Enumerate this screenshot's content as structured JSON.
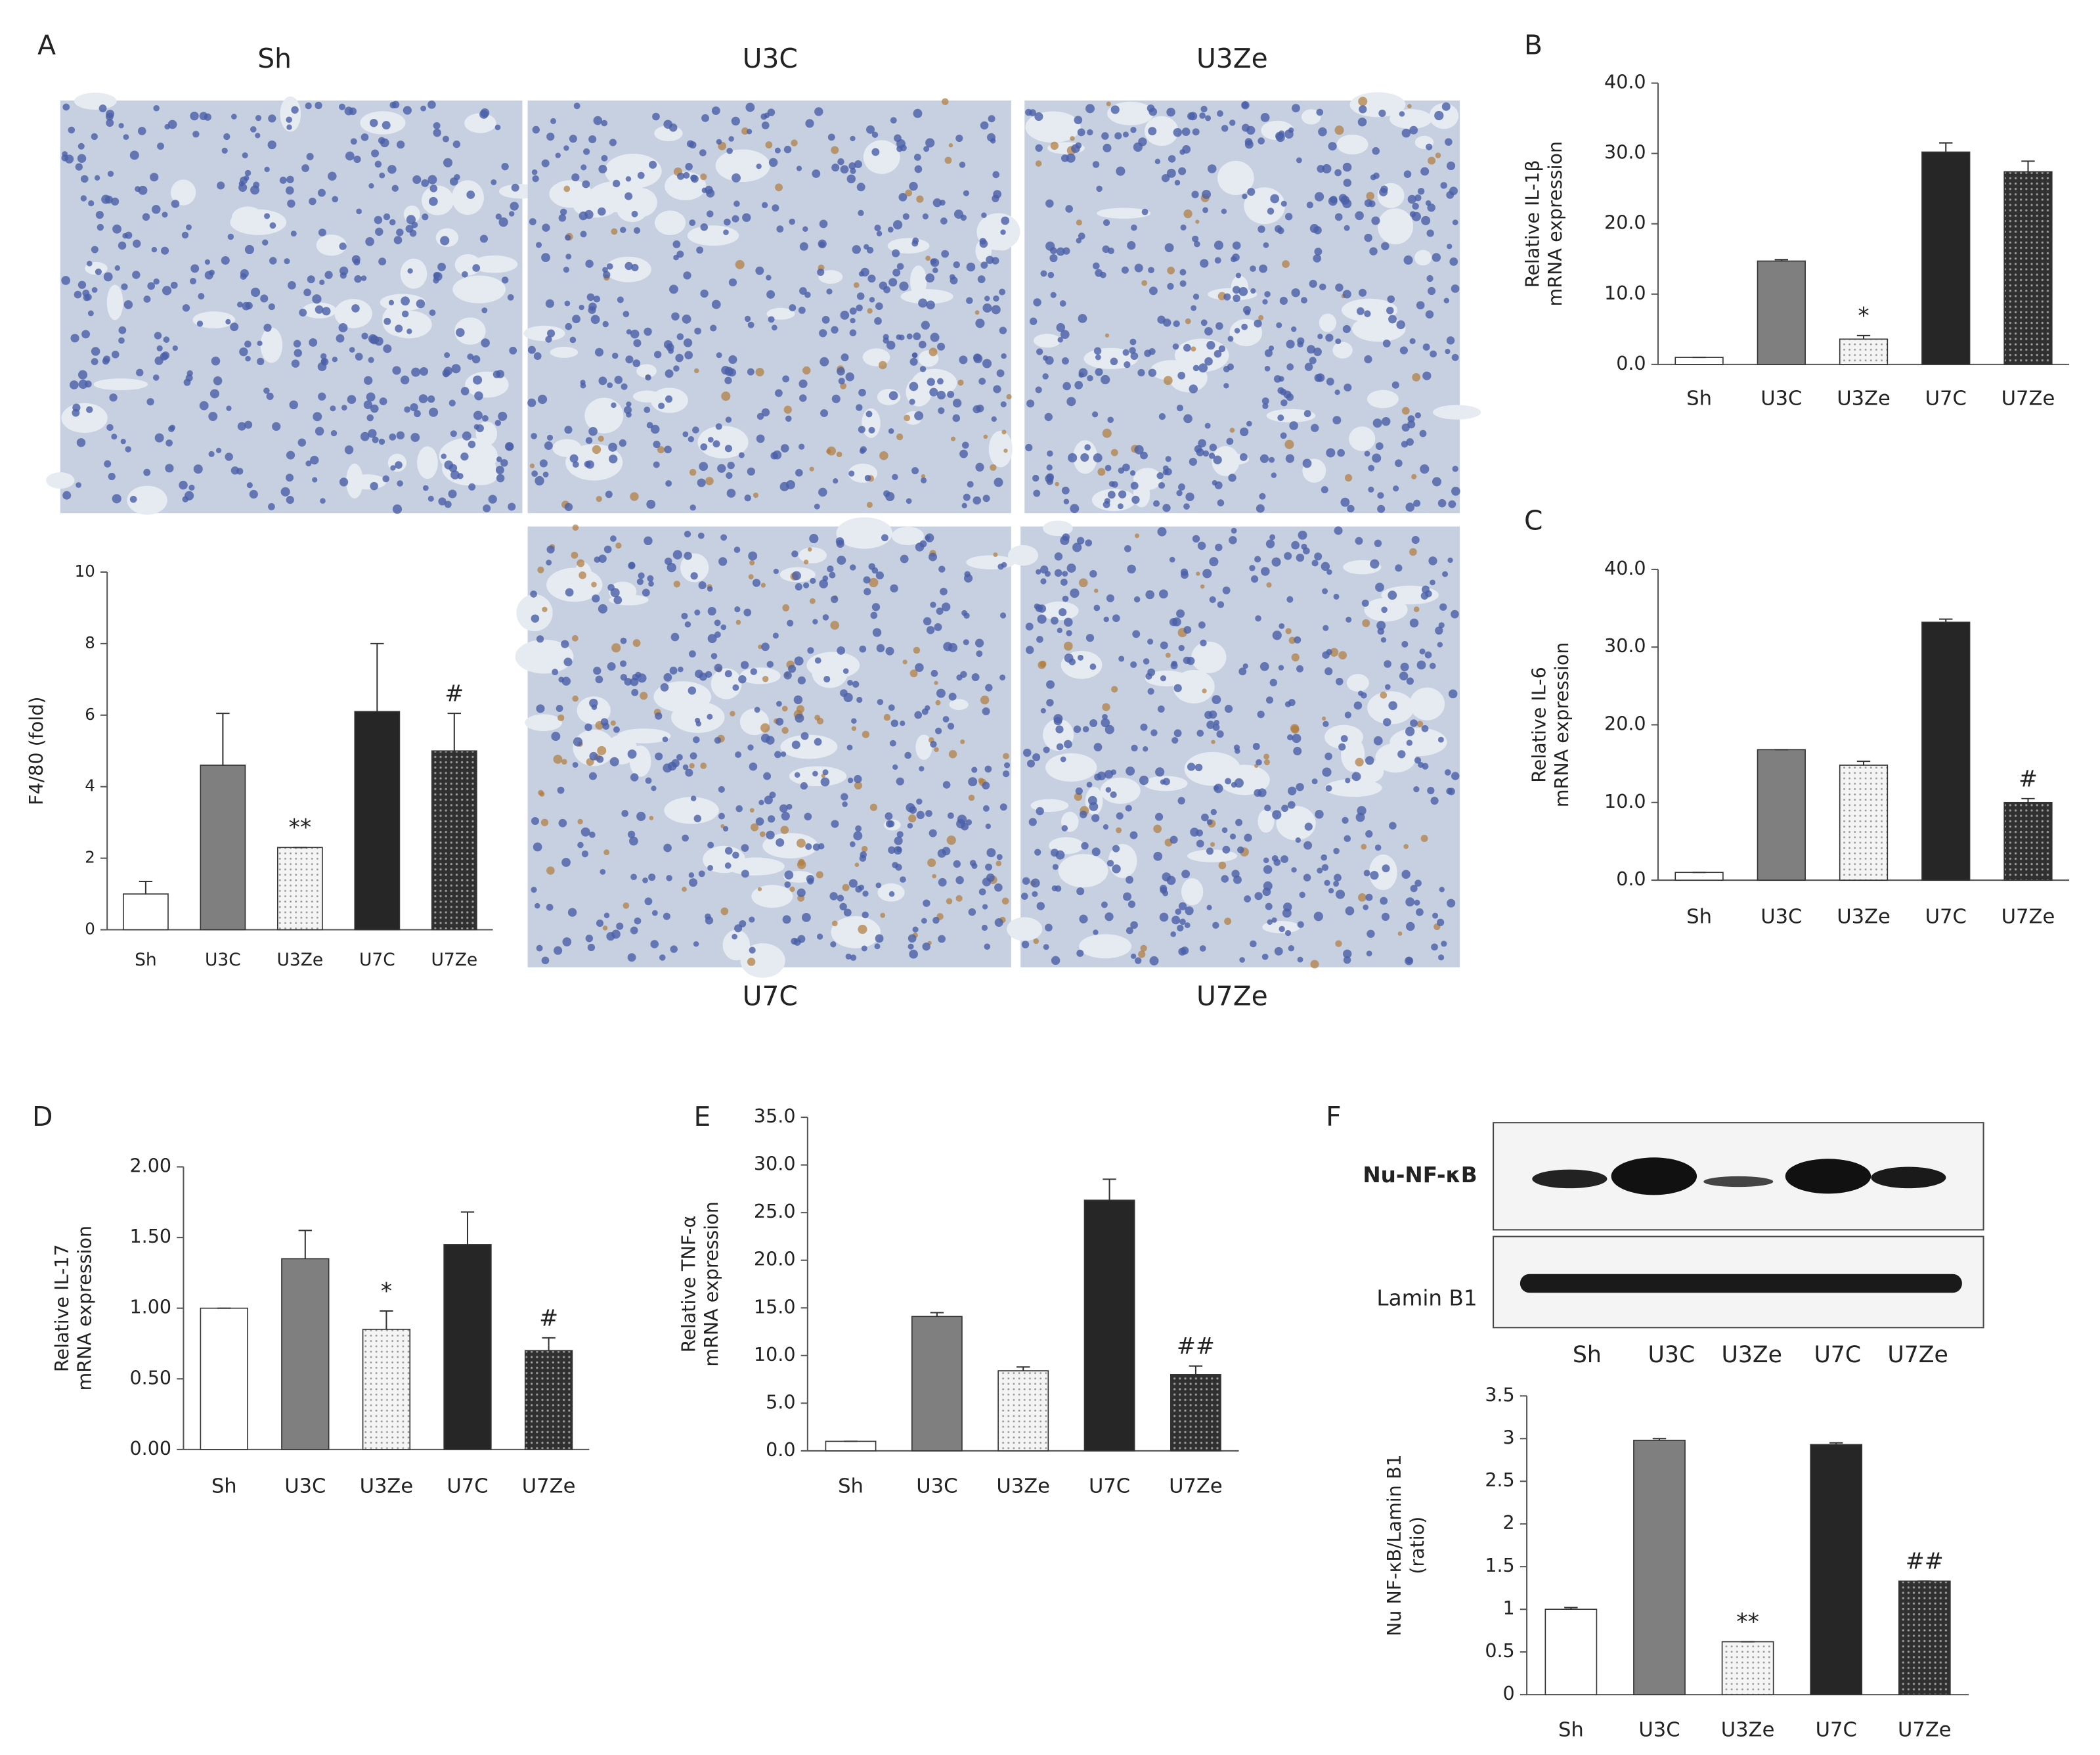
{
  "micrographs": [
    "Sh",
    "U3C",
    "U3Ze",
    "U7C",
    "U7Ze"
  ],
  "blot": {
    "rows": [
      "Nu-NF-κB",
      "Lamin B1"
    ],
    "lanes": [
      "Sh",
      "U3C",
      "U3Ze",
      "U7C",
      "U7Ze"
    ]
  },
  "chart_data": [
    {
      "type": "bar",
      "panel": "A",
      "ylabel": [
        "F4/80 (fold)"
      ],
      "categories": [
        "Sh",
        "U3C",
        "U3Ze",
        "U7C",
        "U7Ze"
      ],
      "values": [
        1.0,
        4.6,
        2.3,
        6.1,
        5.0
      ],
      "errors": [
        0.35,
        1.45,
        0,
        1.9,
        1.05
      ],
      "annotations": [
        null,
        null,
        "**",
        null,
        "#"
      ],
      "colors": [
        "#ffffff",
        "#7f7f7f",
        "#ececec",
        "#262626",
        "#3c3c3c"
      ],
      "ylim": [
        0,
        10
      ],
      "yticks": [
        0,
        2,
        4,
        6,
        8,
        10
      ]
    },
    {
      "type": "bar",
      "panel": "B",
      "ylabel": [
        "Relative IL-1β",
        "mRNA expression"
      ],
      "categories": [
        "Sh",
        "U3C",
        "U3Ze",
        "U7C",
        "U7Ze"
      ],
      "values": [
        1.0,
        14.7,
        3.6,
        30.2,
        27.4
      ],
      "errors": [
        0,
        0.2,
        0.5,
        1.3,
        1.5
      ],
      "annotations": [
        null,
        null,
        "*",
        null,
        null
      ],
      "colors": [
        "#ffffff",
        "#7f7f7f",
        "#ececec",
        "#262626",
        "#3c3c3c"
      ],
      "ylim": [
        0,
        40
      ],
      "yticks": [
        {
          "value": 0,
          "label": "0.0"
        },
        {
          "value": 10,
          "label": "10.0"
        },
        {
          "value": 20,
          "label": "20.0"
        },
        {
          "value": 30,
          "label": "30.0"
        },
        {
          "value": 40,
          "label": "40.0"
        }
      ]
    },
    {
      "type": "bar",
      "panel": "C",
      "ylabel": [
        "Relative IL-6",
        "mRNA expression"
      ],
      "categories": [
        "Sh",
        "U3C",
        "U3Ze",
        "U7C",
        "U7Ze"
      ],
      "values": [
        1.0,
        16.8,
        14.8,
        33.2,
        10.0
      ],
      "errors": [
        0,
        0,
        0.5,
        0.4,
        0.5
      ],
      "annotations": [
        null,
        null,
        null,
        null,
        "#"
      ],
      "colors": [
        "#ffffff",
        "#7f7f7f",
        "#ececec",
        "#262626",
        "#3c3c3c"
      ],
      "ylim": [
        0,
        40
      ],
      "yticks": [
        {
          "value": 0,
          "label": "0.0"
        },
        {
          "value": 10,
          "label": "10.0"
        },
        {
          "value": 20,
          "label": "20.0"
        },
        {
          "value": 30,
          "label": "30.0"
        },
        {
          "value": 40,
          "label": "40.0"
        }
      ]
    },
    {
      "type": "bar",
      "panel": "D",
      "ylabel": [
        "Relative IL-17",
        "mRNA expression"
      ],
      "categories": [
        "Sh",
        "U3C",
        "U3Ze",
        "U7C",
        "U7Ze"
      ],
      "values": [
        1.0,
        1.35,
        0.85,
        1.45,
        0.7
      ],
      "errors": [
        0,
        0.2,
        0.13,
        0.23,
        0.09
      ],
      "annotations": [
        null,
        null,
        "*",
        null,
        "#"
      ],
      "colors": [
        "#ffffff",
        "#7f7f7f",
        "#ececec",
        "#262626",
        "#3c3c3c"
      ],
      "ylim": [
        0,
        2
      ],
      "yticks": [
        {
          "value": 0,
          "label": "0.00"
        },
        {
          "value": 0.5,
          "label": "0.50"
        },
        {
          "value": 1,
          "label": "1.00"
        },
        {
          "value": 1.5,
          "label": "1.50"
        },
        {
          "value": 2,
          "label": "2.00"
        }
      ]
    },
    {
      "type": "bar",
      "panel": "E",
      "ylabel": [
        "Relative TNF-α",
        "mRNA expression"
      ],
      "categories": [
        "Sh",
        "U3C",
        "U3Ze",
        "U7C",
        "U7Ze"
      ],
      "values": [
        1.0,
        14.1,
        8.4,
        26.3,
        8.0
      ],
      "errors": [
        0,
        0.4,
        0.4,
        2.2,
        0.9
      ],
      "annotations": [
        null,
        null,
        null,
        null,
        "##"
      ],
      "colors": [
        "#ffffff",
        "#7f7f7f",
        "#ececec",
        "#262626",
        "#3c3c3c"
      ],
      "ylim": [
        0,
        35
      ],
      "yticks": [
        {
          "value": 0,
          "label": "0.0"
        },
        {
          "value": 5,
          "label": "5.0"
        },
        {
          "value": 10,
          "label": "10.0"
        },
        {
          "value": 15,
          "label": "15.0"
        },
        {
          "value": 20,
          "label": "20.0"
        },
        {
          "value": 25,
          "label": "25.0"
        },
        {
          "value": 30,
          "label": "30.0"
        },
        {
          "value": 35,
          "label": "35.0"
        }
      ]
    },
    {
      "type": "bar",
      "panel": "F",
      "ylabel": [
        "Nu NF-κB/Lamin B1",
        "(ratio)"
      ],
      "categories": [
        "Sh",
        "U3C",
        "U3Ze",
        "U7C",
        "U7Ze"
      ],
      "values": [
        1.0,
        2.98,
        0.62,
        2.93,
        1.33
      ],
      "errors": [
        0.02,
        0.02,
        0,
        0.02,
        0
      ],
      "annotations": [
        null,
        null,
        "**",
        null,
        "##"
      ],
      "colors": [
        "#ffffff",
        "#7f7f7f",
        "#ececec",
        "#262626",
        "#3c3c3c"
      ],
      "ylim": [
        0,
        3.5
      ],
      "yticks": [
        0,
        0.5,
        1,
        1.5,
        2,
        2.5,
        3,
        3.5
      ]
    }
  ]
}
